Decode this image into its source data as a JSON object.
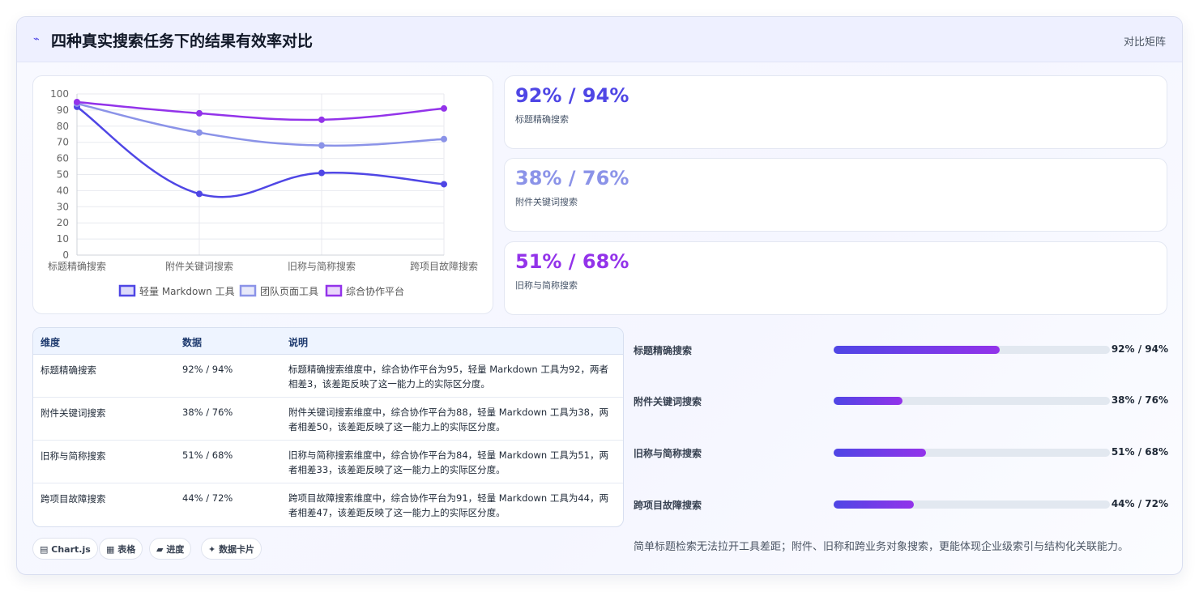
{
  "header": {
    "icon": "sparkline-icon",
    "title": "四种真实搜索任务下的结果有效率对比",
    "right_label": "对比矩阵"
  },
  "colors": {
    "series1": "#4f46e5",
    "series2": "#8b93e8",
    "series3": "#9333ea"
  },
  "chart_data": {
    "type": "line",
    "categories": [
      "标题精确搜索",
      "附件关键词搜索",
      "旧称与简称搜索",
      "跨项目故障搜索"
    ],
    "series": [
      {
        "name": "轻量 Markdown 工具",
        "values": [
          92,
          38,
          51,
          44
        ],
        "color": "#4f46e5"
      },
      {
        "name": "团队页面工具",
        "values": [
          94,
          76,
          68,
          72
        ],
        "color": "#8b93e8"
      },
      {
        "name": "综合协作平台",
        "values": [
          95,
          88,
          84,
          91
        ],
        "color": "#9333ea"
      }
    ],
    "y_ticks": [
      0,
      10,
      20,
      30,
      40,
      50,
      60,
      70,
      80,
      90,
      100
    ],
    "ylim": [
      0,
      100
    ],
    "grid": true,
    "legend": "bottom"
  },
  "stats": [
    {
      "value": "92% / 94%",
      "label": "标题精确搜索",
      "color": "#4f46e5"
    },
    {
      "value": "38% / 76%",
      "label": "附件关键词搜索",
      "color": "#8b93e8"
    },
    {
      "value": "51% / 68%",
      "label": "旧称与简称搜索",
      "color": "#9333ea"
    }
  ],
  "table": {
    "headers": [
      "维度",
      "数据",
      "说明"
    ],
    "rows": [
      {
        "dim": "标题精确搜索",
        "data": "92% / 94%",
        "desc": "标题精确搜索维度中，综合协作平台为95，轻量 Markdown 工具为92，两者相差3，该差距反映了这一能力上的实际区分度。"
      },
      {
        "dim": "附件关键词搜索",
        "data": "38% / 76%",
        "desc": "附件关键词搜索维度中，综合协作平台为88，轻量 Markdown 工具为38，两者相差50，该差距反映了这一能力上的实际区分度。"
      },
      {
        "dim": "旧称与简称搜索",
        "data": "51% / 68%",
        "desc": "旧称与简称搜索维度中，综合协作平台为84，轻量 Markdown 工具为51，两者相差33，该差距反映了这一能力上的实际区分度。"
      },
      {
        "dim": "跨项目故障搜索",
        "data": "44% / 72%",
        "desc": "跨项目故障搜索维度中，综合协作平台为91，轻量 Markdown 工具为44，两者相差47，该差距反映了这一能力上的实际区分度。"
      }
    ]
  },
  "chips": [
    {
      "icon": "chart-icon",
      "glyph": "▤",
      "label": "Chart.js"
    },
    {
      "icon": "table-icon",
      "glyph": "▦",
      "label": "表格"
    },
    {
      "icon": "progress-icon",
      "glyph": "▰",
      "label": "进度"
    },
    {
      "icon": "card-icon",
      "glyph": "✦",
      "label": "数据卡片"
    }
  ],
  "bars": [
    {
      "label": "标题精确搜索",
      "value": "92% / 94%",
      "fill_fraction": 0.6
    },
    {
      "label": "附件关键词搜索",
      "value": "38% / 76%",
      "fill_fraction": 0.25
    },
    {
      "label": "旧称与简称搜索",
      "value": "51% / 68%",
      "fill_fraction": 0.335
    },
    {
      "label": "跨项目故障搜索",
      "value": "44% / 72%",
      "fill_fraction": 0.29
    }
  ],
  "summary": "简单标题检索无法拉开工具差距；附件、旧称和跨业务对象搜索，更能体现企业级索引与结构化关联能力。"
}
